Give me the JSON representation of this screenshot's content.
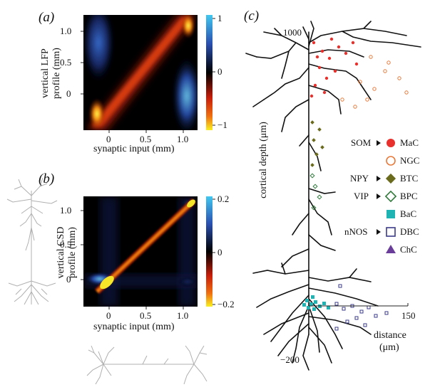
{
  "panels": {
    "a": {
      "label": "(a)",
      "ylabel_line1": "vertical LFP",
      "ylabel_line2": "profile (mm)",
      "xlabel": "synaptic input (mm)",
      "xticks": [
        "0",
        "0.5",
        "1.0"
      ],
      "yticks": [
        "1.0",
        "0.5",
        "0"
      ],
      "colorbar_ticks": [
        "1",
        "0",
        "−1"
      ]
    },
    "b": {
      "label": "(b)",
      "ylabel_line1": "vertical CSD",
      "ylabel_line2": "profile (mm)",
      "xlabel": "synaptic input (mm)",
      "xticks": [
        "0",
        "0.5",
        "1.0"
      ],
      "yticks": [
        "1.0",
        "0.5",
        "0"
      ],
      "colorbar_ticks": [
        "0.2",
        "0",
        "−0.2"
      ]
    },
    "c": {
      "label": "(c)",
      "ylabel": "cortical depth (μm)",
      "xlabel_line1": "distance",
      "xlabel_line2": "(μm)",
      "top_tick": "1000",
      "bottom_tick": "−200",
      "right_tick": "150"
    }
  },
  "legend": {
    "groups": [
      "SOM",
      "NPY",
      "VIP",
      "nNOS"
    ],
    "items": [
      {
        "label": "MaC",
        "color": "#e8312c",
        "shape": "filled-circle"
      },
      {
        "label": "NGC",
        "color": "#e8793a",
        "shape": "open-circle"
      },
      {
        "label": "BTC",
        "color": "#6b6b1e",
        "shape": "filled-diamond"
      },
      {
        "label": "BPC",
        "color": "#2f7a3a",
        "shape": "open-diamond"
      },
      {
        "label": "BaC",
        "color": "#1fb3b3",
        "shape": "filled-square"
      },
      {
        "label": "DBC",
        "color": "#3a3a8a",
        "shape": "open-square"
      },
      {
        "label": "ChC",
        "color": "#6a3d9a",
        "shape": "filled-triangle"
      }
    ]
  },
  "chart_data": [
    {
      "type": "heatmap",
      "panel": "(a)",
      "xlabel": "synaptic input (mm)",
      "ylabel": "vertical LFP profile (mm)",
      "xlim": [
        -0.35,
        1.3
      ],
      "ylim": [
        -0.45,
        1.2
      ],
      "zlim": [
        -1,
        1
      ]
    },
    {
      "type": "heatmap",
      "panel": "(b)",
      "xlabel": "synaptic input (mm)",
      "ylabel": "vertical CSD profile (mm)",
      "xlim": [
        -0.35,
        1.3
      ],
      "ylim": [
        -0.45,
        1.2
      ],
      "zlim": [
        -0.2,
        0.2
      ]
    }
  ]
}
